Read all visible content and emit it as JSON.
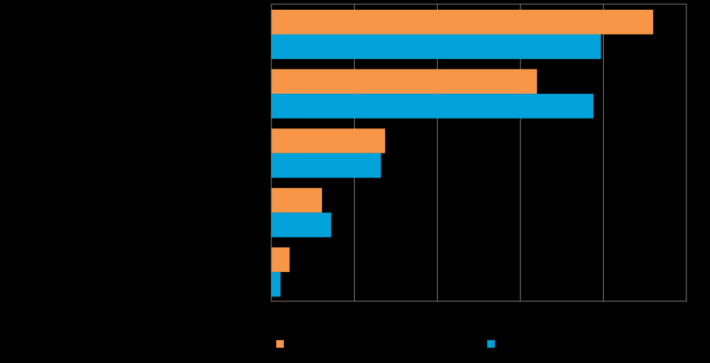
{
  "chart_data": {
    "type": "bar",
    "orientation": "horizontal",
    "categories": [
      "",
      "",
      "",
      "",
      ""
    ],
    "series": [
      {
        "name": "",
        "color": "#F79646",
        "values": [
          46,
          32,
          13.7,
          6.1,
          2.2
        ]
      },
      {
        "name": "",
        "color": "#00A2DA",
        "values": [
          39.7,
          38.8,
          13.2,
          7.2,
          1.1
        ]
      }
    ],
    "title": "",
    "xlabel": "",
    "ylabel": "",
    "xlim": [
      0,
      50
    ],
    "x_gridlines": [
      10,
      20,
      30,
      40
    ],
    "grid": true,
    "legend_position": "bottom",
    "background": "#000000",
    "axis_color": "#8C8C8C"
  }
}
